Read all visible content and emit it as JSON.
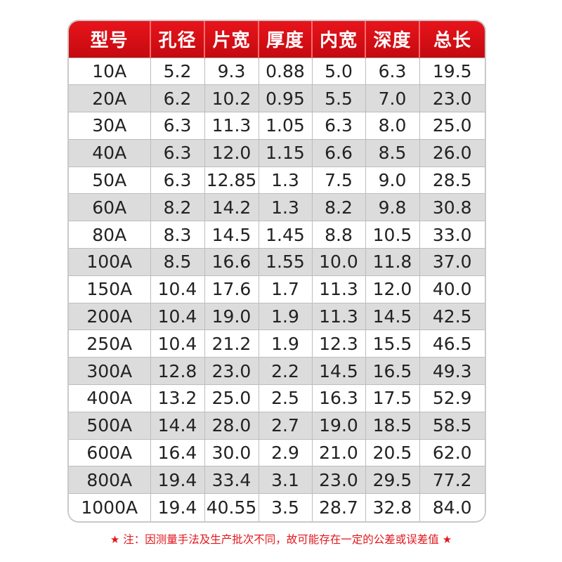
{
  "table": {
    "headers": [
      "型号",
      "孔径",
      "片宽",
      "厚度",
      "内宽",
      "深度",
      "总长"
    ],
    "rows": [
      [
        "10A",
        "5.2",
        "9.3",
        "0.88",
        "5.0",
        "6.3",
        "19.5"
      ],
      [
        "20A",
        "6.2",
        "10.2",
        "0.95",
        "5.5",
        "7.0",
        "23.0"
      ],
      [
        "30A",
        "6.3",
        "11.3",
        "1.05",
        "6.3",
        "8.0",
        "25.0"
      ],
      [
        "40A",
        "6.3",
        "12.0",
        "1.15",
        "6.6",
        "8.5",
        "26.0"
      ],
      [
        "50A",
        "6.3",
        "12.85",
        "1.3",
        "7.5",
        "9.0",
        "28.5"
      ],
      [
        "60A",
        "8.2",
        "14.2",
        "1.3",
        "8.2",
        "9.8",
        "30.8"
      ],
      [
        "80A",
        "8.3",
        "14.5",
        "1.45",
        "8.8",
        "10.5",
        "33.0"
      ],
      [
        "100A",
        "8.5",
        "16.6",
        "1.55",
        "10.0",
        "11.8",
        "37.0"
      ],
      [
        "150A",
        "10.4",
        "17.6",
        "1.7",
        "11.3",
        "12.0",
        "40.0"
      ],
      [
        "200A",
        "10.4",
        "19.0",
        "1.9",
        "11.3",
        "14.5",
        "42.5"
      ],
      [
        "250A",
        "10.4",
        "21.2",
        "1.9",
        "12.3",
        "15.5",
        "46.5"
      ],
      [
        "300A",
        "12.8",
        "23.0",
        "2.2",
        "14.5",
        "16.5",
        "49.3"
      ],
      [
        "400A",
        "13.2",
        "25.0",
        "2.5",
        "16.3",
        "17.5",
        "52.9"
      ],
      [
        "500A",
        "14.4",
        "28.0",
        "2.7",
        "19.0",
        "18.5",
        "58.5"
      ],
      [
        "600A",
        "16.4",
        "30.0",
        "2.9",
        "21.0",
        "20.5",
        "62.0"
      ],
      [
        "800A",
        "19.4",
        "33.4",
        "3.1",
        "23.0",
        "29.5",
        "77.2"
      ],
      [
        "1000A",
        "19.4",
        "40.55",
        "3.5",
        "28.7",
        "32.8",
        "84.0"
      ]
    ]
  },
  "note": {
    "star_left": "★",
    "text": "注：因测量手法及生产批次不同，故可能存在一定的公差或误差值",
    "star_right": "★"
  },
  "colors": {
    "header_red": "#e1161c",
    "stripe_gray": "#dcdcdc",
    "note_red": "#e1161c"
  }
}
